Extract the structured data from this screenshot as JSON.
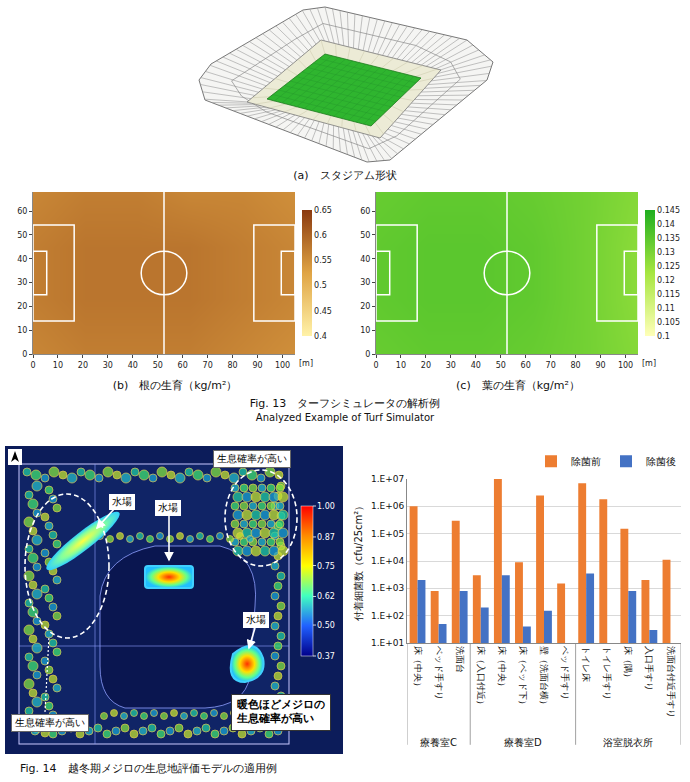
{
  "figures": {
    "fig13": {
      "panel_a_caption": "(a)　スタジアム形状",
      "caption": "Fig. 13　ターフシミュレータの解析例",
      "caption_en": "Analyzed Example of Turf Simulator"
    },
    "fig14": {
      "caption": "Fig. 14　越冬期メジロの生息地評価モデルの適用例",
      "map": {
        "habitat_labels": [
          "生息確率が高い",
          "生息確率が高い"
        ],
        "water_labels": [
          "水場",
          "水場",
          "水場"
        ],
        "note": "暖色ほどメジロの生息確率が高い",
        "colorbar": {
          "range": [
            0.37,
            1.0
          ],
          "ticks": [
            {
              "value": 1.0,
              "label": "1.00"
            },
            {
              "value": 0.87,
              "label": "0.87"
            },
            {
              "value": 0.75,
              "label": "0.75"
            },
            {
              "value": 0.62,
              "label": "0.62"
            },
            {
              "value": 0.5,
              "label": "0.50"
            },
            {
              "value": 0.37,
              "label": "0.37"
            }
          ]
        }
      }
    }
  },
  "chart_data": [
    {
      "type": "heatmap",
      "title": "(b)　根の生育（kg/m²）",
      "xlabel": "[m]",
      "x": [
        0,
        21,
        42,
        63,
        84,
        105
      ],
      "y": [
        0,
        23,
        45,
        68
      ],
      "z": [
        [
          0.56,
          0.57,
          0.57,
          0.57,
          0.56,
          0.55
        ],
        [
          0.57,
          0.58,
          0.58,
          0.58,
          0.57,
          0.56
        ],
        [
          0.57,
          0.58,
          0.58,
          0.58,
          0.57,
          0.56
        ],
        [
          0.56,
          0.57,
          0.57,
          0.56,
          0.56,
          0.55
        ]
      ],
      "xlim": [
        0,
        105
      ],
      "xticks": [
        0,
        10,
        20,
        30,
        40,
        50,
        60,
        70,
        80,
        90,
        100
      ],
      "ylim": [
        0,
        68
      ],
      "yticks": [
        0,
        10,
        20,
        30,
        40,
        50,
        60
      ],
      "colorbar": {
        "range": [
          0.4,
          0.65
        ],
        "ticks": [
          0.4,
          0.45,
          0.5,
          0.55,
          0.6,
          0.65
        ]
      },
      "colors": [
        "#fff2a8",
        "#e0a445",
        "#8a3a10"
      ]
    },
    {
      "type": "heatmap",
      "title": "(c)　葉の生育（kg/m²）",
      "xlabel": "[m]",
      "x": [
        0,
        21,
        42,
        63,
        84,
        105
      ],
      "y": [
        0,
        23,
        45,
        68
      ],
      "z": [
        [
          0.133,
          0.134,
          0.134,
          0.133,
          0.131,
          0.128
        ],
        [
          0.134,
          0.135,
          0.135,
          0.134,
          0.131,
          0.127
        ],
        [
          0.134,
          0.135,
          0.135,
          0.134,
          0.131,
          0.127
        ],
        [
          0.133,
          0.134,
          0.134,
          0.133,
          0.131,
          0.128
        ]
      ],
      "xlim": [
        0,
        105
      ],
      "xticks": [
        0,
        10,
        20,
        30,
        40,
        50,
        60,
        70,
        80,
        90,
        100
      ],
      "ylim": [
        0,
        68
      ],
      "yticks": [
        0,
        10,
        20,
        30,
        40,
        50,
        60
      ],
      "colorbar": {
        "range": [
          0.1,
          0.145
        ],
        "ticks": [
          0.1,
          0.105,
          0.11,
          0.115,
          0.12,
          0.125,
          0.13,
          0.135,
          0.14,
          0.145
        ]
      },
      "colors": [
        "#ffffb8",
        "#a6e640",
        "#1fae1f"
      ]
    },
    {
      "type": "bar",
      "log": "y",
      "grid": true,
      "legend": "top",
      "ylabel": "付着細菌数（cfu/25cm²）",
      "categories": [
        "床（中央）",
        "ベッド手すり",
        "洗面台",
        "床（入口付近）",
        "床（中央）",
        "床（ベッド下）",
        "壁（洗面台横）",
        "ベッド手すり",
        "トイレ床",
        "トイレ手すり",
        "床（隅）",
        "入口手すり",
        "洗面台付近手すり"
      ],
      "groups": [
        "療養室C",
        "療養室C",
        "療養室C",
        "療養室D",
        "療養室D",
        "療養室D",
        "療養室D",
        "療養室D",
        "浴室脱衣所",
        "浴室脱衣所",
        "浴室脱衣所",
        "浴室脱衣所",
        "浴室脱衣所"
      ],
      "series": [
        {
          "name": "除菌前",
          "color": "#ed7d31",
          "values": [
            1000000,
            800,
            300000,
            3000,
            10000000,
            9000,
            2500000,
            1500,
            7000000,
            1800000,
            150000,
            2000,
            11000
          ]
        },
        {
          "name": "除菌後",
          "color": "#4472c4",
          "values": [
            2000,
            50,
            800,
            200,
            3000,
            40,
            150,
            null,
            3500,
            null,
            800,
            30,
            null
          ]
        }
      ],
      "ylim": [
        10,
        10000000
      ],
      "yticks": [
        {
          "value": 10,
          "label": "1.E+01"
        },
        {
          "value": 100,
          "label": "1.E+02"
        },
        {
          "value": 1000,
          "label": "1.E+03"
        },
        {
          "value": 10000,
          "label": "1.E+04"
        },
        {
          "value": 100000,
          "label": "1.E+05"
        },
        {
          "value": 1000000,
          "label": "1.E+06"
        },
        {
          "value": 10000000,
          "label": "1.E+07"
        }
      ]
    }
  ]
}
